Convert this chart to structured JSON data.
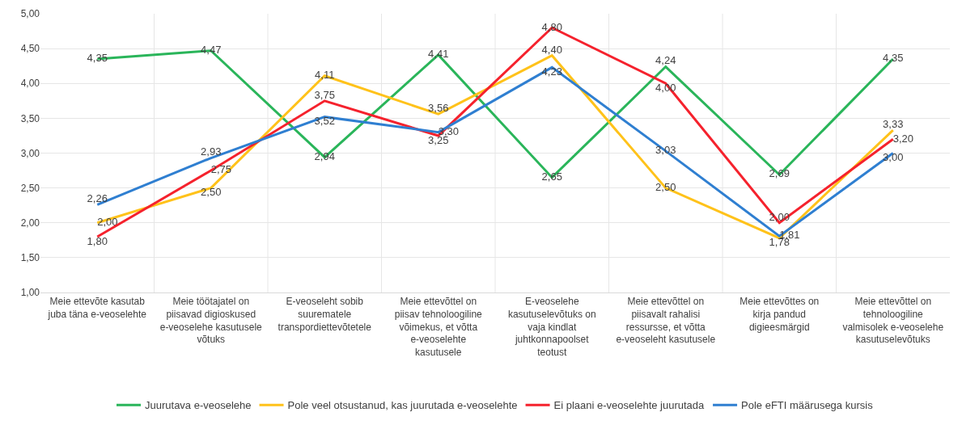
{
  "chart_data": {
    "type": "line",
    "categories": [
      "Meie ettevõte kasutab juba täna e-veoselehte",
      "Meie töötajatel on piisavad digioskused e-veoselehe kasutusele võtuks",
      "E-veoseleht sobib suurematele transpordiettevõtetele",
      "Meie ettevõttel on piisav tehnoloogiline võimekus, et võtta e-veoselehte kasutusele",
      "E-veoselehe kasutuselevõtuks on vaja kindlat juhtkonnapoolset teotust",
      "Meie ettevõttel on piisavalt rahalisi ressursse, et võtta e-veoseleht kasutusele",
      "Meie ettevõttes on kirja pandud digieesmärgid",
      "Meie ettevõttel on tehnoloogiline valmisolek e-veoselehe kasutuselevõtuks"
    ],
    "series": [
      {
        "name": "Juurutava e-veoselehe",
        "color": "#2ab55a",
        "values": [
          4.35,
          4.47,
          2.94,
          4.41,
          2.65,
          4.24,
          2.69,
          4.35
        ],
        "value_labels": [
          "4,35",
          "4,47",
          "2,94",
          "4,41",
          "2,65",
          "4,24",
          "2,69",
          "4,35"
        ]
      },
      {
        "name": "Pole veel otsustanud, kas juurutada e-veoselehte",
        "color": "#ffc21a",
        "values": [
          2.0,
          2.5,
          4.11,
          3.56,
          4.4,
          2.5,
          1.78,
          3.33
        ],
        "value_labels": [
          "2,00",
          "2,50",
          "4,11",
          "3,56",
          "4,40",
          "2,50",
          "1,78",
          "3,33"
        ]
      },
      {
        "name": "Ei plaani e-veoselehte juurutada",
        "color": "#f5222d",
        "values": [
          1.8,
          2.75,
          3.75,
          3.25,
          4.8,
          4.0,
          2.0,
          3.2
        ],
        "value_labels": [
          "1,80",
          "2,75",
          "3,75",
          "3,25",
          "4,80",
          "4,00",
          "2,00",
          "3,20"
        ]
      },
      {
        "name": "Pole eFTI määrusega kursis",
        "color": "#2f7fd1",
        "values": [
          2.26,
          2.93,
          3.52,
          3.3,
          4.23,
          3.03,
          1.81,
          3.0
        ],
        "value_labels": [
          "2,26",
          "2,93",
          "3,52",
          "3,30",
          "4,23",
          "3,03",
          "1,81",
          "3,00"
        ]
      }
    ],
    "ylim": [
      1,
      5
    ],
    "yticks": [
      {
        "value": 1,
        "label": "1,00"
      },
      {
        "value": 1.5,
        "label": "1,50"
      },
      {
        "value": 2,
        "label": "2,00"
      },
      {
        "value": 2.5,
        "label": "2,50"
      },
      {
        "value": 3,
        "label": "3,00"
      },
      {
        "value": 3.5,
        "label": "3,50"
      },
      {
        "value": 4,
        "label": "4,00"
      },
      {
        "value": 4.5,
        "label": "4,50"
      },
      {
        "value": 5,
        "label": "5,00"
      }
    ],
    "grid": true,
    "legend": "bottom",
    "marker": "none",
    "line_style": "solid"
  }
}
